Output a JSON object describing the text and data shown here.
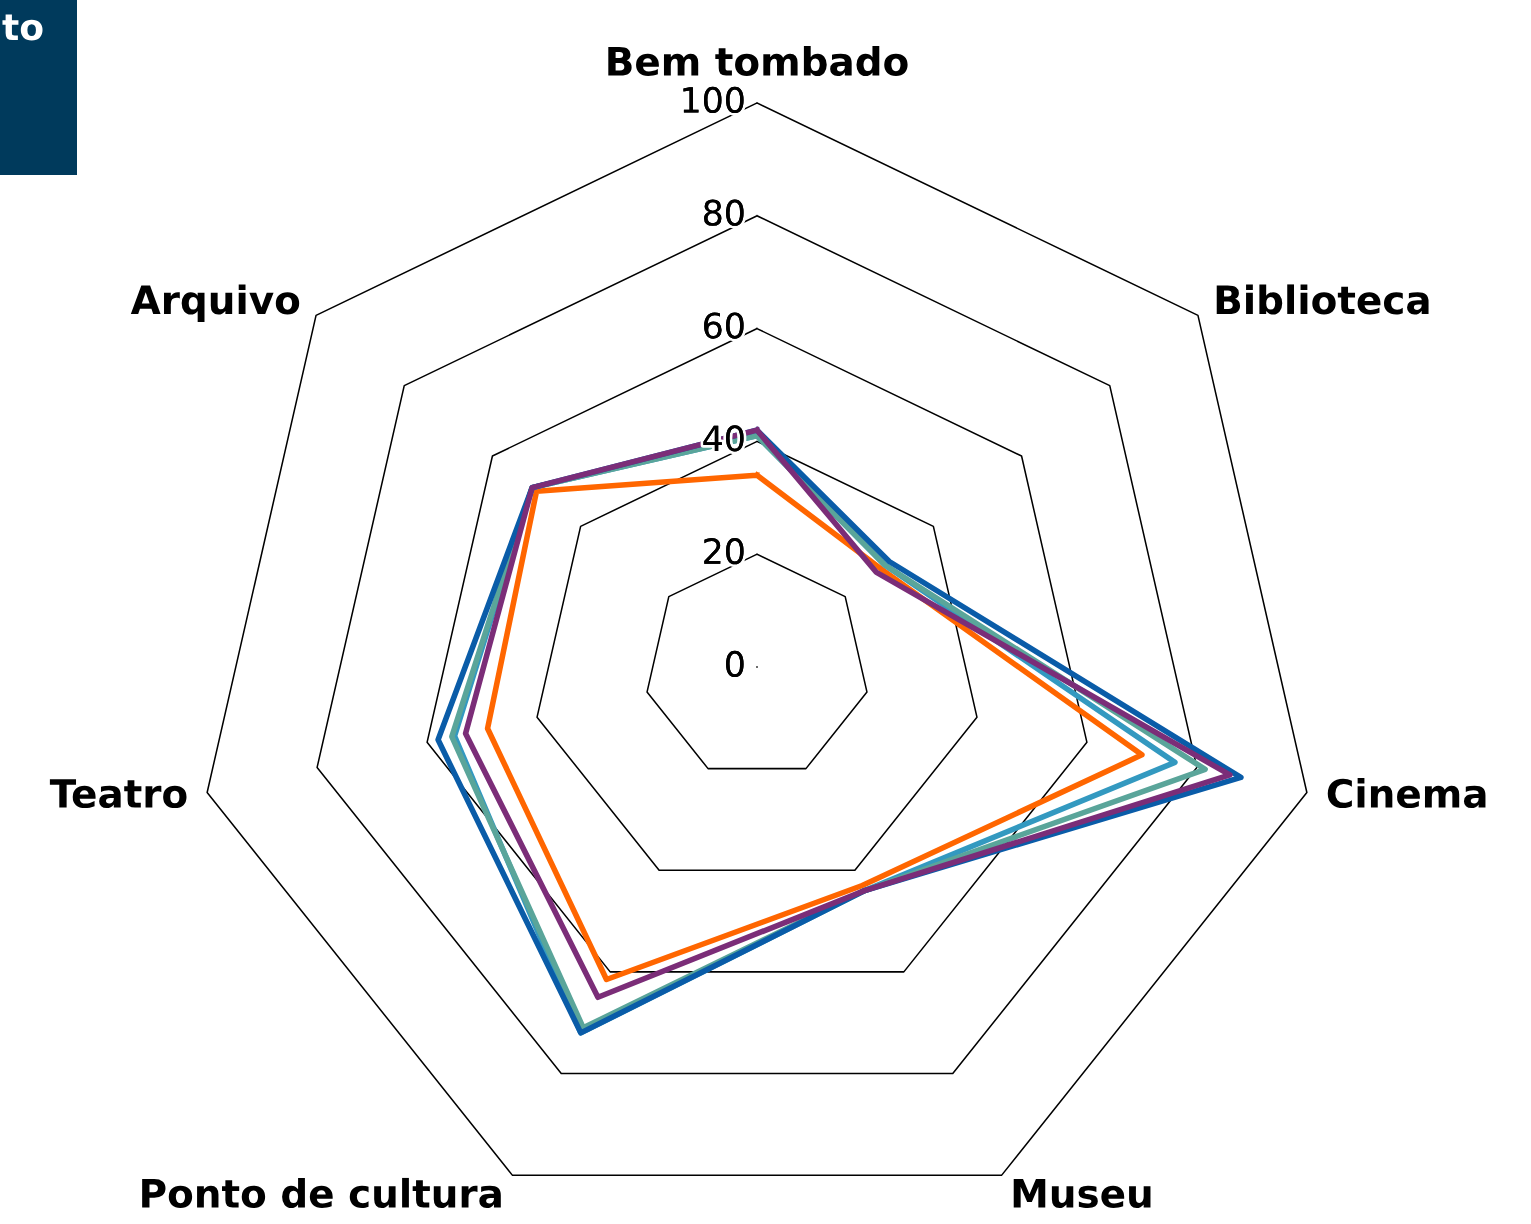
{
  "chart_data": {
    "type": "radar",
    "categories": [
      "Bem tombado",
      "Biblioteca",
      "Cinema",
      "Museu",
      "Ponto de cultura",
      "Teatro",
      "Arquivo"
    ],
    "ylim": [
      0,
      100
    ],
    "yticks": [
      0,
      20,
      40,
      60,
      80,
      100
    ],
    "grid": true,
    "line_style": "solid",
    "marker": "none",
    "annotations": [
      "to"
    ],
    "series": [
      {
        "color": "#ff6600",
        "values": [
          34,
          28,
          70,
          43,
          61.5,
          49,
          50
        ]
      },
      {
        "color": "#3399c0",
        "values": [
          41,
          29,
          76,
          44,
          72,
          55,
          51
        ]
      },
      {
        "color": "#5aa59a",
        "values": [
          41,
          29,
          81.5,
          44,
          71,
          55.5,
          51
        ]
      },
      {
        "color": "#0a5ca8",
        "values": [
          42,
          30,
          88,
          44,
          72,
          58,
          51
        ]
      },
      {
        "color": "#7b2d78",
        "values": [
          42,
          27,
          86,
          44,
          65,
          53,
          51
        ]
      }
    ]
  }
}
